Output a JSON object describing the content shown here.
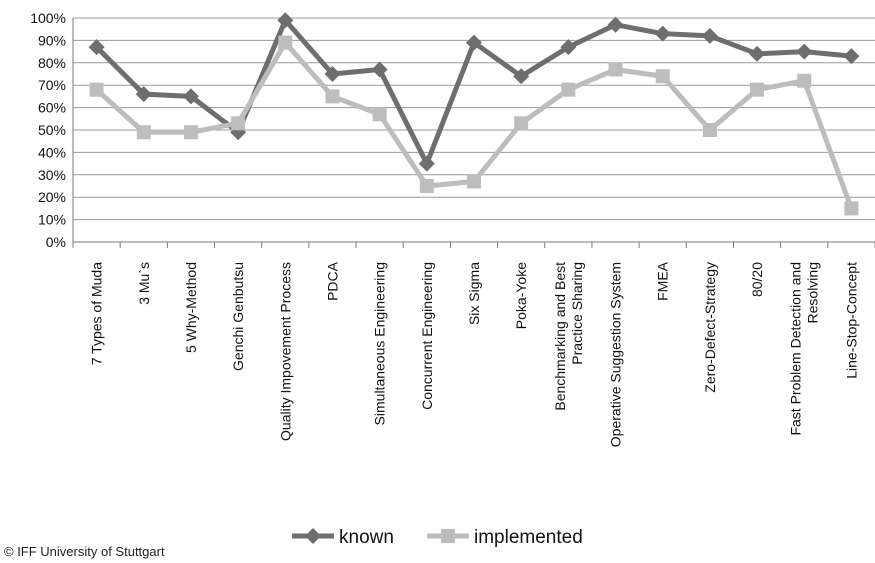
{
  "chart_data": {
    "type": "line",
    "categories": [
      "7 Types of Muda",
      "3 Mu's",
      "5 Why-Method",
      "Genchi Genbutsu",
      "Quality Impovement Process",
      "PDCA",
      "Simultaneous Engineering",
      "Concurrent Engineering",
      "Six Sigma",
      "Poka-Yoke",
      "Benchmarking and Best Practice Sharing",
      "Operative Suggestion System",
      "FMEA",
      "Zero-Defect-Strategy",
      "80/20",
      "Fast Problem Detection and Resolving",
      "Line-Stop-Concept"
    ],
    "category_lines": [
      [
        "7 Types of Muda"
      ],
      [
        "3 Mu`s"
      ],
      [
        "5 Why-Method"
      ],
      [
        "Genchi Genbutsu"
      ],
      [
        "Quality Impovement Process"
      ],
      [
        "PDCA"
      ],
      [
        "Simultaneous Engineering"
      ],
      [
        "Concurrent Engineering"
      ],
      [
        "Six Sigma"
      ],
      [
        "Poka-Yoke"
      ],
      [
        "Benchmarking and Best",
        "Practice Sharing"
      ],
      [
        "Operative Suggestion System"
      ],
      [
        "FMEA"
      ],
      [
        "Zero-Defect-Strategy"
      ],
      [
        "80/20"
      ],
      [
        "Fast Problem Detection and",
        "Resolving"
      ],
      [
        "Line-Stop-Concept"
      ]
    ],
    "series": [
      {
        "name": "known",
        "color": "#6e6e6e",
        "marker": "diamond",
        "values": [
          87,
          66,
          65,
          49,
          99,
          75,
          77,
          35,
          89,
          74,
          87,
          97,
          93,
          92,
          84,
          85,
          83
        ]
      },
      {
        "name": "implemented",
        "color": "#bdbdbd",
        "marker": "square",
        "values": [
          68,
          49,
          49,
          53,
          89,
          65,
          57,
          25,
          27,
          53,
          68,
          77,
          74,
          50,
          68,
          72,
          15
        ]
      }
    ],
    "y_ticks": [
      "0%",
      "10%",
      "20%",
      "30%",
      "40%",
      "50%",
      "60%",
      "70%",
      "80%",
      "90%",
      "100%"
    ],
    "ylim": [
      0,
      100
    ],
    "grid": true,
    "legend_position": "bottom"
  },
  "credit": "© IFF University of Stuttgart"
}
